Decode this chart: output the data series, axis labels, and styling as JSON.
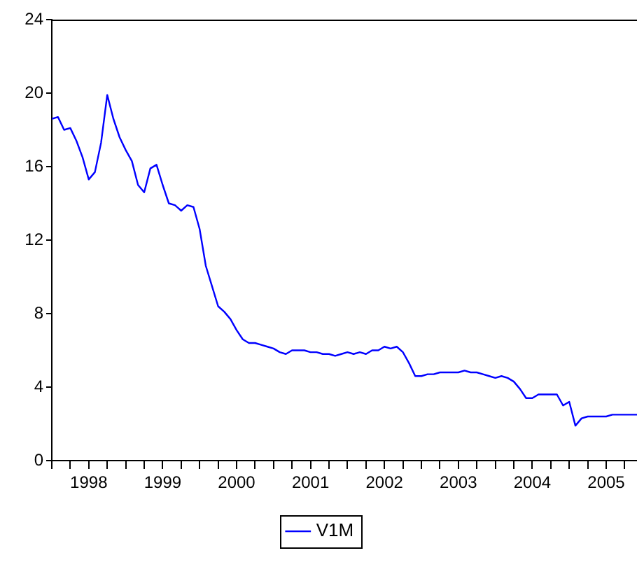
{
  "chart_data": {
    "type": "line",
    "x": [
      "1998-01",
      "1998-02",
      "1998-03",
      "1998-04",
      "1998-05",
      "1998-06",
      "1998-07",
      "1998-08",
      "1998-09",
      "1998-10",
      "1998-11",
      "1998-12",
      "1999-01",
      "1999-02",
      "1999-03",
      "1999-04",
      "1999-05",
      "1999-06",
      "1999-07",
      "1999-08",
      "1999-09",
      "1999-10",
      "1999-11",
      "1999-12",
      "2000-01",
      "2000-02",
      "2000-03",
      "2000-04",
      "2000-05",
      "2000-06",
      "2000-07",
      "2000-08",
      "2000-09",
      "2000-10",
      "2000-11",
      "2000-12",
      "2001-01",
      "2001-02",
      "2001-03",
      "2001-04",
      "2001-05",
      "2001-06",
      "2001-07",
      "2001-08",
      "2001-09",
      "2001-10",
      "2001-11",
      "2001-12",
      "2002-01",
      "2002-02",
      "2002-03",
      "2002-04",
      "2002-05",
      "2002-06",
      "2002-07",
      "2002-08",
      "2002-09",
      "2002-10",
      "2002-11",
      "2002-12",
      "2003-01",
      "2003-02",
      "2003-03",
      "2003-04",
      "2003-05",
      "2003-06",
      "2003-07",
      "2003-08",
      "2003-09",
      "2003-10",
      "2003-11",
      "2003-12",
      "2004-01",
      "2004-02",
      "2004-03",
      "2004-04",
      "2004-05",
      "2004-06",
      "2004-07",
      "2004-08",
      "2004-09",
      "2004-10",
      "2004-11",
      "2004-12",
      "2005-01",
      "2005-02",
      "2005-03",
      "2005-04",
      "2005-05",
      "2005-06",
      "2005-07",
      "2005-08",
      "2005-09",
      "2005-10",
      "2005-11",
      "2005-12"
    ],
    "series": [
      {
        "name": "V1M",
        "color": "#0000ff",
        "values": [
          18.6,
          18.7,
          18.0,
          18.1,
          17.4,
          16.5,
          15.3,
          15.7,
          17.3,
          19.9,
          18.6,
          17.6,
          16.9,
          16.3,
          15.0,
          14.6,
          15.9,
          16.1,
          15.0,
          14.0,
          13.9,
          13.6,
          13.9,
          13.8,
          12.6,
          10.6,
          9.5,
          8.4,
          8.1,
          7.7,
          7.1,
          6.6,
          6.4,
          6.4,
          6.3,
          6.2,
          6.1,
          5.9,
          5.8,
          6.0,
          6.0,
          6.0,
          5.9,
          5.9,
          5.8,
          5.8,
          5.7,
          5.8,
          5.9,
          5.8,
          5.9,
          5.8,
          6.0,
          6.0,
          6.2,
          6.1,
          6.2,
          5.9,
          5.3,
          4.6,
          4.6,
          4.7,
          4.7,
          4.8,
          4.8,
          4.8,
          4.8,
          4.9,
          4.8,
          4.8,
          4.7,
          4.6,
          4.5,
          4.6,
          4.5,
          4.3,
          3.9,
          3.4,
          3.4,
          3.6,
          3.6,
          3.6,
          3.6,
          3.0,
          3.2,
          1.9,
          2.3,
          2.4,
          2.4,
          2.4,
          2.4,
          2.5,
          2.5,
          2.5,
          2.5,
          2.5
        ]
      }
    ],
    "xlim": [
      "1998-01",
      "2005-12"
    ],
    "xticks": [
      {
        "value": "1998-01",
        "label": null
      },
      {
        "value": "1998-04",
        "label": null
      },
      {
        "value": "1998-07",
        "label": "1998"
      },
      {
        "value": "1998-10",
        "label": null
      },
      {
        "value": "1999-01",
        "label": null
      },
      {
        "value": "1999-04",
        "label": null
      },
      {
        "value": "1999-07",
        "label": "1999"
      },
      {
        "value": "1999-10",
        "label": null
      },
      {
        "value": "2000-01",
        "label": null
      },
      {
        "value": "2000-04",
        "label": null
      },
      {
        "value": "2000-07",
        "label": "2000"
      },
      {
        "value": "2000-10",
        "label": null
      },
      {
        "value": "2001-01",
        "label": null
      },
      {
        "value": "2001-04",
        "label": null
      },
      {
        "value": "2001-07",
        "label": "2001"
      },
      {
        "value": "2001-10",
        "label": null
      },
      {
        "value": "2002-01",
        "label": null
      },
      {
        "value": "2002-04",
        "label": null
      },
      {
        "value": "2002-07",
        "label": "2002"
      },
      {
        "value": "2002-10",
        "label": null
      },
      {
        "value": "2003-01",
        "label": null
      },
      {
        "value": "2003-04",
        "label": null
      },
      {
        "value": "2003-07",
        "label": "2003"
      },
      {
        "value": "2003-10",
        "label": null
      },
      {
        "value": "2004-01",
        "label": null
      },
      {
        "value": "2004-04",
        "label": null
      },
      {
        "value": "2004-07",
        "label": "2004"
      },
      {
        "value": "2004-10",
        "label": null
      },
      {
        "value": "2005-01",
        "label": null
      },
      {
        "value": "2005-04",
        "label": null
      },
      {
        "value": "2005-07",
        "label": "2005"
      },
      {
        "value": "2005-10",
        "label": null
      }
    ],
    "ylim": [
      0,
      24
    ],
    "yticks": [
      0,
      4,
      8,
      12,
      16,
      20,
      24
    ],
    "grid": false,
    "legend": "bottom",
    "marker": "none",
    "line_style": "solid"
  }
}
